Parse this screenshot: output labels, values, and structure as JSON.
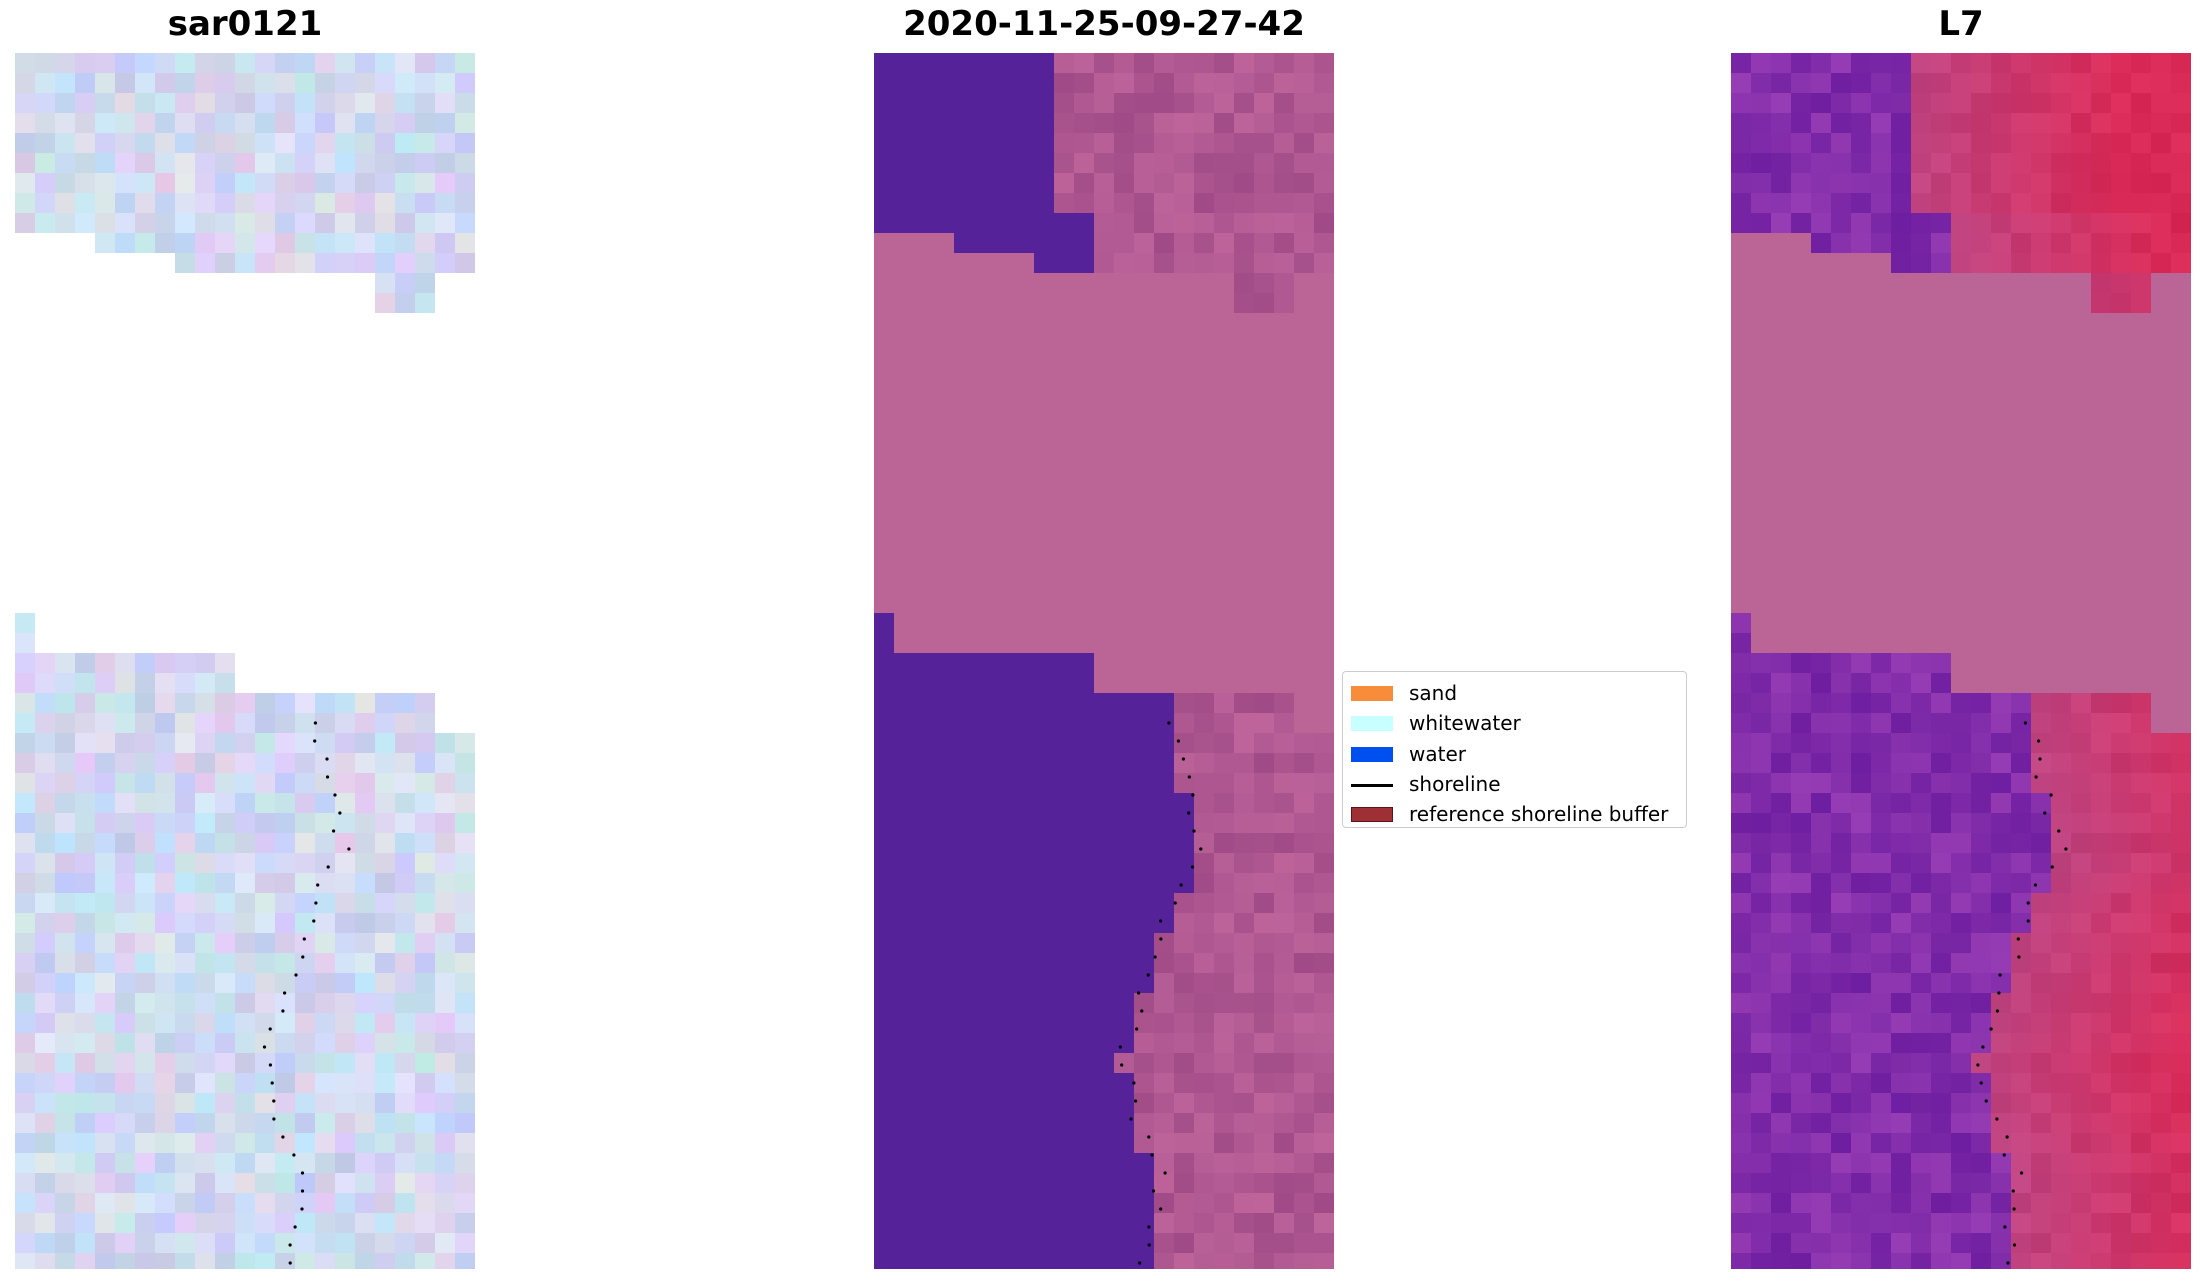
{
  "panels": [
    {
      "title": "sar0121",
      "image": "rgb-satellite-composite"
    },
    {
      "title": "2020-11-25-09-27-42",
      "image": "classified-image"
    },
    {
      "title": "L7",
      "image": "mndwi-index-image"
    }
  ],
  "legend": {
    "items": [
      {
        "label": "sand",
        "color": "#f78c3b",
        "kind": "patch"
      },
      {
        "label": "whitewater",
        "color": "#c8ffff",
        "kind": "patch"
      },
      {
        "label": "water",
        "color": "#0050f0",
        "kind": "patch"
      },
      {
        "label": "shoreline",
        "color": "#000000",
        "kind": "line"
      },
      {
        "label": "reference shoreline buffer",
        "color": "#9e2f34",
        "kind": "patch"
      }
    ]
  },
  "colors": {
    "class_water_purple": "#55229a",
    "nodata_pink": "#bb6596",
    "sand_mauve": "#a85390",
    "index_magenta": "#c52a66",
    "index_violet": "#7a2fa3",
    "rgb_lightblue": "#c3d2ee",
    "shoreline_dots": "#000000"
  }
}
